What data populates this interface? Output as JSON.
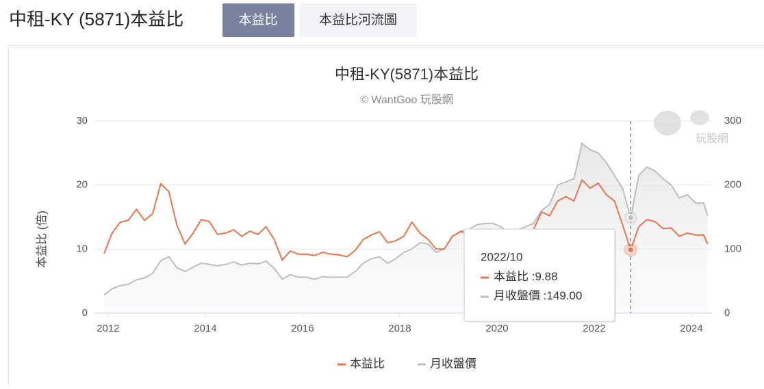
{
  "header": {
    "title": "中租-KY (5871)本益比",
    "tabs": [
      "本益比",
      "本益比河流圖"
    ]
  },
  "chart_data": {
    "type": "line",
    "title": "中租-KY(5871)本益比",
    "subtitle": "© WantGoo 玩股網",
    "watermark": "玩股網",
    "y_label": "本益比 (倍)",
    "x": [
      "2011/12",
      "2012/02",
      "2012/04",
      "2012/06",
      "2012/08",
      "2012/10",
      "2012/12",
      "2013/02",
      "2013/04",
      "2013/06",
      "2013/08",
      "2013/10",
      "2013/12",
      "2014/02",
      "2014/04",
      "2014/06",
      "2014/08",
      "2014/10",
      "2014/12",
      "2015/02",
      "2015/04",
      "2015/06",
      "2015/08",
      "2015/10",
      "2015/12",
      "2016/02",
      "2016/04",
      "2016/06",
      "2016/08",
      "2016/10",
      "2016/12",
      "2017/02",
      "2017/04",
      "2017/06",
      "2017/08",
      "2017/10",
      "2017/12",
      "2018/02",
      "2018/04",
      "2018/06",
      "2018/08",
      "2018/10",
      "2018/12",
      "2019/02",
      "2019/04",
      "2019/06",
      "2019/08",
      "2019/10",
      "2019/12",
      "2020/02",
      "2020/04",
      "2020/06",
      "2020/08",
      "2020/10",
      "2020/12",
      "2021/02",
      "2021/04",
      "2021/06",
      "2021/08",
      "2021/10",
      "2021/12",
      "2022/02",
      "2022/04",
      "2022/06",
      "2022/08",
      "2022/10",
      "2022/12",
      "2023/02",
      "2023/04",
      "2023/06",
      "2023/08",
      "2023/10",
      "2023/12",
      "2024/02",
      "2024/04",
      "2024/05"
    ],
    "series": [
      {
        "name": "本益比",
        "color": "#e8744a",
        "axis": "y",
        "values": [
          9.3,
          12.5,
          14.2,
          14.5,
          16.2,
          14.5,
          15.5,
          20.2,
          19,
          13.7,
          10.8,
          12.5,
          14.6,
          14.3,
          12.3,
          12.5,
          13,
          12,
          12.8,
          12.3,
          13.5,
          11.5,
          8.3,
          9.7,
          9.2,
          9.2,
          9,
          9.5,
          9.2,
          9.1,
          8.8,
          9.8,
          11.5,
          12.2,
          12.7,
          11,
          11.3,
          12,
          14.2,
          12.5,
          11.5,
          10,
          10,
          12,
          12.7,
          12.5,
          12.5,
          12.8,
          12.5,
          12.2,
          11.5,
          12,
          12.5,
          13,
          15.8,
          15.2,
          17.5,
          18.2,
          17.5,
          20.8,
          19.5,
          20.3,
          18.5,
          17.5,
          13.8,
          9.88,
          13.5,
          14.6,
          14.3,
          13.2,
          13.3,
          12,
          12.5,
          12.2,
          12.2,
          10.8
        ]
      },
      {
        "name": "月收盤價",
        "color": "#bdbdbd",
        "axis": "y2",
        "values": [
          28,
          38,
          43,
          45,
          52,
          55,
          62,
          82,
          88,
          71,
          65,
          72,
          78,
          76,
          74,
          76,
          80,
          75,
          78,
          77,
          81,
          70,
          53,
          60,
          56,
          56,
          53,
          57,
          56,
          56,
          56,
          65,
          78,
          85,
          88,
          78,
          85,
          95,
          100,
          110,
          108,
          95,
          100,
          120,
          128,
          130,
          138,
          140,
          140,
          135,
          125,
          130,
          135,
          140,
          160,
          170,
          200,
          205,
          210,
          265,
          255,
          250,
          235,
          215,
          195,
          149,
          215,
          228,
          222,
          210,
          200,
          180,
          185,
          172,
          172,
          152
        ]
      }
    ],
    "xlim": [
      2011.72,
      2024.38
    ],
    "xticks": [
      2012,
      2014,
      2016,
      2018,
      2020,
      2022,
      2024
    ],
    "ylim": [
      0,
      30
    ],
    "yticks": [
      0,
      10,
      20,
      30
    ],
    "y2lim": [
      0,
      300
    ],
    "y2ticks": [
      0,
      100,
      200,
      300
    ],
    "grid": true,
    "legend": "bottom",
    "tooltip": {
      "x": "2022/10",
      "separator": " :",
      "value_labels": [
        "9.88",
        "149.00"
      ]
    }
  }
}
